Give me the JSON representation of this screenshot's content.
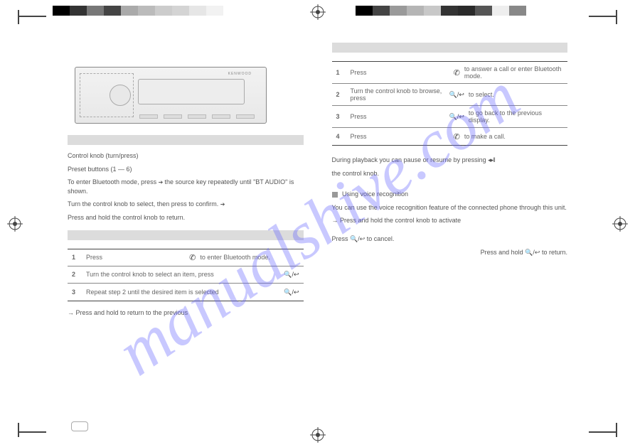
{
  "colorbar_left": [
    "#000000",
    "#333333",
    "#777777",
    "#444444",
    "#aaaaaa",
    "#bbbbbb",
    "#cccccc",
    "#d4d4d4",
    "#e6e6e6",
    "#f2f2f2"
  ],
  "colorbar_right": [
    "#000000",
    "#444444",
    "#9a9a9a",
    "#b5b5b5",
    "#c8c8c8",
    "#333333",
    "#2a2a2a",
    "#555555",
    "#eeeeee",
    "#888888"
  ],
  "device": {
    "brand": "KENWOOD"
  },
  "left": {
    "para1": "Control knob (turn/press)",
    "para2": "Preset buttons (1 — 6)",
    "para3": "To enter Bluetooth mode, press",
    "para3_arrow": "the source key repeatedly until \"BT AUDIO\" is shown.",
    "para4": "Turn the control knob to select, then press to confirm.",
    "para5": "Press and hold the control knob to return.",
    "table1": {
      "rows": [
        {
          "n": "1",
          "txt": "Press",
          "glyph": "phone",
          "tail": "to enter Bluetooth mode."
        },
        {
          "n": "2",
          "txt": "Turn the control knob to select an item, press",
          "glyph": "search"
        },
        {
          "n": "3",
          "txt": "Repeat step 2 until the desired item is selected",
          "glyph": "search"
        }
      ]
    },
    "bottom_note": "→ Press and hold     to return to the previous"
  },
  "right": {
    "table2": {
      "rows": [
        {
          "n": "1",
          "txt": "Press",
          "glyph": "phone",
          "tail": "to answer a call or enter Bluetooth mode."
        },
        {
          "n": "2",
          "txt": "Turn the control knob to browse, press",
          "glyph": "search",
          "tail": "to select."
        },
        {
          "n": "3",
          "txt": "Press",
          "glyph": "search",
          "tail": "to go back to the previous display."
        },
        {
          "n": "4",
          "txt": "Press",
          "glyph": "phone",
          "tail": "to make a call."
        }
      ]
    },
    "mid_line1": "During playback you can pause or resume by pressing",
    "mid_glyph": "play",
    "mid_line2": "the control knob.",
    "sq_head": "Using voice recognition",
    "para_a": "You can use the voice recognition feature of the connected phone through this unit.",
    "para_b": "→ Press and hold the control knob to activate",
    "tail1": "Press",
    "tail1_glyph": "search",
    "tail1_end": "to cancel.",
    "tail2": "Press and hold",
    "tail2_glyph": "search",
    "tail2_end": "to return."
  }
}
